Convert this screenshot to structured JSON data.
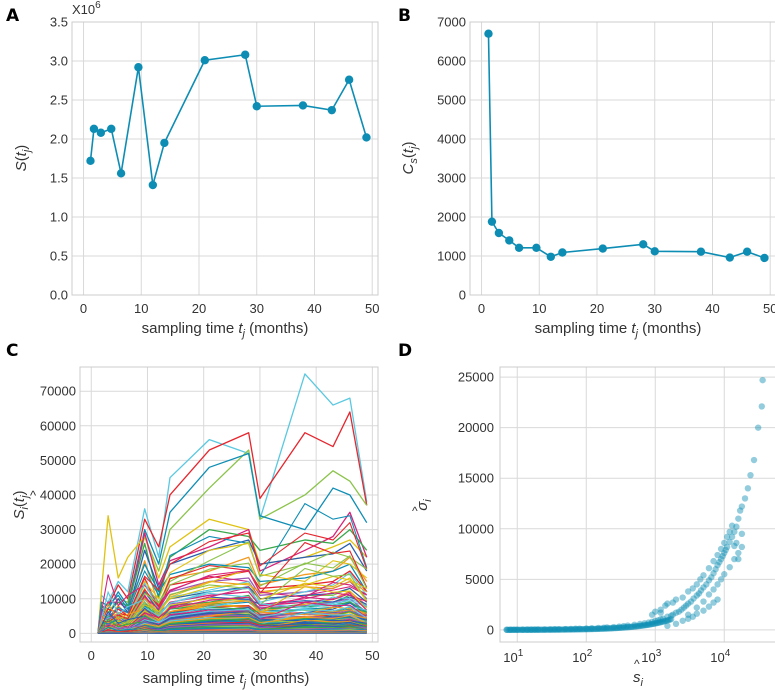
{
  "panels": [
    {
      "letter": "A"
    },
    {
      "letter": "B"
    },
    {
      "letter": "C"
    },
    {
      "letter": "D"
    }
  ],
  "chart_data": [
    {
      "id": "A",
      "type": "line",
      "color": "#0e8db4",
      "multiplier_label": "X10",
      "multiplier_exp": "6",
      "x": [
        1.2,
        1.8,
        3.0,
        4.8,
        6.5,
        9.5,
        12.0,
        14.0,
        21.0,
        28.0,
        30.0,
        38.0,
        43.0,
        46.0,
        49.0
      ],
      "values": [
        1.72,
        2.13,
        2.08,
        2.13,
        1.56,
        2.92,
        1.41,
        1.95,
        3.01,
        3.08,
        2.42,
        2.43,
        2.37,
        2.76,
        2.02
      ],
      "xlim": [
        -2,
        51
      ],
      "ylim": [
        0,
        3.5
      ],
      "xticks": [
        0,
        10,
        20,
        30,
        40,
        50
      ],
      "yticks": [
        0.0,
        0.5,
        1.0,
        1.5,
        2.0,
        2.5,
        3.0,
        3.5
      ],
      "ytick_labels": [
        "0.0",
        "0.5",
        "1.0",
        "1.5",
        "2.0",
        "2.5",
        "3.0",
        "3.5"
      ],
      "xlabel_pre": "sampling time ",
      "xlabel_var": "t",
      "xlabel_sub": "j",
      "xlabel_post": " (months)",
      "ylabel_var": "S",
      "ylabel_sub": "j"
    },
    {
      "id": "B",
      "type": "line",
      "color": "#0e8db4",
      "x": [
        1.2,
        1.8,
        3.0,
        4.8,
        6.5,
        9.5,
        12.0,
        14.0,
        21.0,
        28.0,
        30.0,
        38.0,
        43.0,
        46.0,
        49.0
      ],
      "values": [
        6700,
        1880,
        1590,
        1400,
        1210,
        1210,
        980,
        1090,
        1190,
        1300,
        1120,
        1110,
        960,
        1110,
        950
      ],
      "xlim": [
        -2,
        51
      ],
      "ylim": [
        0,
        7000
      ],
      "xticks": [
        0,
        10,
        20,
        30,
        40,
        50
      ],
      "yticks": [
        0,
        1000,
        2000,
        3000,
        4000,
        5000,
        6000,
        7000
      ],
      "ytick_labels": [
        "0",
        "1000",
        "2000",
        "3000",
        "4000",
        "5000",
        "6000",
        "7000"
      ],
      "xlabel_pre": "sampling time ",
      "xlabel_var": "t",
      "xlabel_sub": "j",
      "xlabel_post": " (months)",
      "ylabel_var": "C",
      "ylabel_sub1": "s",
      "ylabel_sub2": "j"
    },
    {
      "id": "C",
      "type": "line",
      "x": [
        1.2,
        1.8,
        3.0,
        4.8,
        6.5,
        9.5,
        12.0,
        14.0,
        21.0,
        28.0,
        30.0,
        38.0,
        43.0,
        46.0,
        49.0
      ],
      "xlim": [
        -2,
        51
      ],
      "ylim": [
        -2500,
        77000
      ],
      "xticks": [
        0,
        10,
        20,
        30,
        40,
        50
      ],
      "yticks": [
        0,
        10000,
        20000,
        30000,
        40000,
        50000,
        60000,
        70000
      ],
      "ytick_labels": [
        "0",
        "10000",
        "20000",
        "30000",
        "40000",
        "50000",
        "60000",
        "70000"
      ],
      "xlabel_pre": "sampling time ",
      "xlabel_var": "t",
      "xlabel_sub": "j",
      "xlabel_post": " (months)",
      "ylabel_var": "S",
      "ylabel_sub1": "i",
      "ylabel_sub2": "j",
      "palette": [
        "#0e8db4",
        "#e5262e",
        "#8bc34a",
        "#e0c212",
        "#d6247a",
        "#5ac8e0",
        "#f29a1f",
        "#2a5fb0",
        "#39a84a",
        "#9b59b6"
      ],
      "series": [
        {
          "color": "#5ac8e0",
          "values": [
            0,
            11000,
            9000,
            15000,
            12000,
            36000,
            22000,
            45000,
            56000,
            52000,
            33000,
            75000,
            66000,
            68000,
            38000
          ]
        },
        {
          "color": "#e5262e",
          "values": [
            0,
            9000,
            8000,
            14000,
            10000,
            33000,
            25000,
            40000,
            53000,
            58000,
            39000,
            58000,
            54000,
            64000,
            37000
          ]
        },
        {
          "color": "#8bc34a",
          "values": [
            0,
            7000,
            6000,
            10000,
            9000,
            28000,
            18000,
            30000,
            42000,
            53000,
            33000,
            40000,
            47000,
            44000,
            37000
          ]
        },
        {
          "color": "#0e8db4",
          "values": [
            0,
            8000,
            7000,
            12000,
            8000,
            30000,
            20000,
            35000,
            48000,
            52000,
            34000,
            30000,
            42000,
            40000,
            32000
          ]
        },
        {
          "color": "#e0c212",
          "values": [
            0,
            12000,
            34000,
            16000,
            22000,
            28000,
            16000,
            25000,
            33000,
            30000,
            20000,
            22000,
            25000,
            27000,
            22000
          ]
        },
        {
          "color": "#d6247a",
          "values": [
            0,
            6000,
            9000,
            9000,
            7000,
            29000,
            14000,
            21000,
            25000,
            30000,
            18000,
            24000,
            28000,
            35000,
            22000
          ]
        },
        {
          "color": "#39a84a",
          "values": [
            0,
            8000,
            6000,
            9000,
            8000,
            26000,
            10000,
            22000,
            30000,
            28000,
            24000,
            27000,
            26000,
            30000,
            24000
          ]
        },
        {
          "color": "#2a5fb0",
          "values": [
            0,
            7000,
            5000,
            10000,
            6000,
            24000,
            13000,
            20000,
            24000,
            27000,
            20000,
            22000,
            23000,
            26000,
            18000
          ]
        },
        {
          "color": "#f29a1f",
          "values": [
            0,
            5000,
            4000,
            8000,
            5000,
            21000,
            8000,
            16000,
            18000,
            22000,
            14000,
            17000,
            18000,
            22000,
            15000
          ]
        },
        {
          "color": "#0e8db4",
          "values": [
            0,
            9000,
            8000,
            11000,
            7000,
            20000,
            12000,
            17000,
            20000,
            19000,
            15000,
            16000,
            18000,
            20000,
            12000
          ]
        },
        {
          "color": "#e5262e",
          "values": [
            0,
            4000,
            7000,
            6000,
            5000,
            16000,
            7000,
            14000,
            16000,
            18000,
            13000,
            14000,
            15000,
            18000,
            12000
          ]
        },
        {
          "color": "#9b59b6",
          "values": [
            0,
            6000,
            5000,
            7000,
            6000,
            14000,
            9000,
            12000,
            15000,
            16000,
            11000,
            12000,
            13000,
            15000,
            10000
          ]
        },
        {
          "color": "#8bc34a",
          "values": [
            0,
            3000,
            5000,
            5000,
            4000,
            12000,
            7000,
            10000,
            12000,
            13000,
            10000,
            11000,
            11000,
            13000,
            9000
          ]
        },
        {
          "color": "#d6247a",
          "values": [
            0,
            4000,
            3000,
            6000,
            3000,
            11000,
            5000,
            9000,
            11000,
            12000,
            8000,
            9000,
            10000,
            12000,
            8000
          ]
        },
        {
          "color": "#5ac8e0",
          "values": [
            0,
            2000,
            3000,
            4000,
            3000,
            9000,
            4000,
            8000,
            9000,
            10000,
            7000,
            8000,
            8000,
            10000,
            6000
          ]
        },
        {
          "color": "#e0c212",
          "values": [
            0,
            3000,
            2000,
            3000,
            2000,
            8000,
            3000,
            6000,
            8000,
            8000,
            6000,
            7000,
            7000,
            9000,
            5000
          ]
        },
        {
          "color": "#2a5fb0",
          "values": [
            0,
            2000,
            2000,
            3000,
            2000,
            7000,
            3000,
            5000,
            6000,
            7000,
            5000,
            6000,
            6000,
            7000,
            4000
          ]
        },
        {
          "color": "#f29a1f",
          "values": [
            0,
            1500,
            1500,
            2000,
            1500,
            5000,
            2000,
            4000,
            5000,
            5500,
            4000,
            4500,
            4500,
            5500,
            3500
          ]
        },
        {
          "color": "#39a84a",
          "values": [
            0,
            1000,
            1000,
            1500,
            1000,
            4000,
            1500,
            3000,
            4000,
            4000,
            3000,
            3500,
            3500,
            4000,
            2500
          ]
        },
        {
          "color": "#e5262e",
          "values": [
            0,
            700,
            800,
            1000,
            700,
            3000,
            1000,
            2000,
            3000,
            3000,
            2000,
            2500,
            2500,
            3000,
            2000
          ]
        },
        {
          "color": "#0e8db4",
          "values": [
            0,
            500,
            500,
            700,
            500,
            2000,
            700,
            1500,
            2000,
            2000,
            1500,
            1800,
            1800,
            2000,
            1300
          ]
        }
      ]
    },
    {
      "id": "D",
      "type": "scatter",
      "color": "#0e8db4",
      "xscale": "log",
      "xlim_log10": [
        0.75,
        4.75
      ],
      "ylim": [
        -1200,
        26000
      ],
      "xticks_exp": [
        1,
        2,
        3,
        4
      ],
      "xtick_base": "10",
      "yticks": [
        0,
        5000,
        10000,
        15000,
        20000,
        25000
      ],
      "ytick_labels": [
        "0",
        "5000",
        "10000",
        "15000",
        "20000",
        "25000"
      ],
      "xlabel_var": "s",
      "xlabel_sub": "i",
      "ylabel_var": "σ",
      "ylabel_sub": "i",
      "points": [
        [
          7,
          15
        ],
        [
          8,
          18
        ],
        [
          9,
          20
        ],
        [
          10,
          22
        ],
        [
          12,
          25
        ],
        [
          14,
          28
        ],
        [
          16,
          30
        ],
        [
          18,
          35
        ],
        [
          20,
          38
        ],
        [
          25,
          45
        ],
        [
          30,
          50
        ],
        [
          35,
          60
        ],
        [
          40,
          70
        ],
        [
          50,
          80
        ],
        [
          60,
          95
        ],
        [
          70,
          110
        ],
        [
          80,
          120
        ],
        [
          100,
          140
        ],
        [
          120,
          160
        ],
        [
          150,
          190
        ],
        [
          180,
          220
        ],
        [
          200,
          240
        ],
        [
          250,
          280
        ],
        [
          300,
          330
        ],
        [
          350,
          380
        ],
        [
          400,
          420
        ],
        [
          500,
          500
        ],
        [
          600,
          580
        ],
        [
          700,
          650
        ],
        [
          800,
          720
        ],
        [
          900,
          800
        ],
        [
          1000,
          900
        ],
        [
          1100,
          950
        ],
        [
          1200,
          1050
        ],
        [
          1300,
          1100
        ],
        [
          1500,
          1300
        ],
        [
          1700,
          1400
        ],
        [
          1800,
          1500
        ],
        [
          2000,
          1700
        ],
        [
          2200,
          1800
        ],
        [
          2400,
          2000
        ],
        [
          2600,
          2200
        ],
        [
          2800,
          2400
        ],
        [
          3000,
          2600
        ],
        [
          3300,
          2800
        ],
        [
          3600,
          3100
        ],
        [
          4000,
          3400
        ],
        [
          4300,
          3600
        ],
        [
          4600,
          3900
        ],
        [
          5000,
          4200
        ],
        [
          5500,
          4500
        ],
        [
          6000,
          4900
        ],
        [
          6500,
          5200
        ],
        [
          7000,
          5600
        ],
        [
          7500,
          6000
        ],
        [
          8000,
          6400
        ],
        [
          8500,
          6700
        ],
        [
          9000,
          7000
        ],
        [
          9500,
          7300
        ],
        [
          10000,
          7600
        ],
        [
          10500,
          7900
        ],
        [
          11000,
          8200
        ],
        [
          12000,
          8700
        ],
        [
          13000,
          9200
        ],
        [
          14000,
          9700
        ],
        [
          15000,
          10200
        ],
        [
          16000,
          11000
        ],
        [
          17000,
          11800
        ],
        [
          18000,
          12200
        ],
        [
          20000,
          13000
        ],
        [
          22000,
          14000
        ],
        [
          24000,
          15300
        ],
        [
          27000,
          16800
        ],
        [
          31000,
          20000
        ],
        [
          35000,
          22100
        ],
        [
          36000,
          24700
        ],
        [
          1000,
          1800
        ],
        [
          1200,
          2000
        ],
        [
          1500,
          2600
        ],
        [
          2000,
          3000
        ],
        [
          2500,
          3200
        ],
        [
          3000,
          3800
        ],
        [
          3500,
          4100
        ],
        [
          4000,
          4500
        ],
        [
          4500,
          5000
        ],
        [
          5000,
          5400
        ],
        [
          6000,
          6100
        ],
        [
          7000,
          6800
        ],
        [
          8000,
          7400
        ],
        [
          9000,
          8000
        ],
        [
          10000,
          8600
        ],
        [
          11000,
          9200
        ],
        [
          12000,
          9700
        ],
        [
          13000,
          10300
        ],
        [
          15000,
          8600
        ],
        [
          14000,
          8300
        ],
        [
          16000,
          7000
        ],
        [
          18000,
          9500
        ],
        [
          3000,
          1500
        ],
        [
          4000,
          2200
        ],
        [
          5000,
          2800
        ],
        [
          6000,
          3500
        ],
        [
          7000,
          4000
        ],
        [
          8000,
          4500
        ],
        [
          9000,
          5000
        ],
        [
          10000,
          5500
        ],
        [
          12000,
          6200
        ],
        [
          14000,
          7000
        ],
        [
          16000,
          7600
        ],
        [
          18000,
          8200
        ],
        [
          1500,
          400
        ],
        [
          2000,
          600
        ],
        [
          2500,
          900
        ],
        [
          3000,
          1100
        ],
        [
          3500,
          1300
        ],
        [
          4000,
          1600
        ],
        [
          5000,
          1900
        ],
        [
          6000,
          2300
        ],
        [
          7000,
          2700
        ],
        [
          8000,
          3000
        ],
        [
          900,
          1500
        ],
        [
          1200,
          1700
        ],
        [
          1400,
          2400
        ],
        [
          1800,
          2700
        ]
      ]
    }
  ]
}
